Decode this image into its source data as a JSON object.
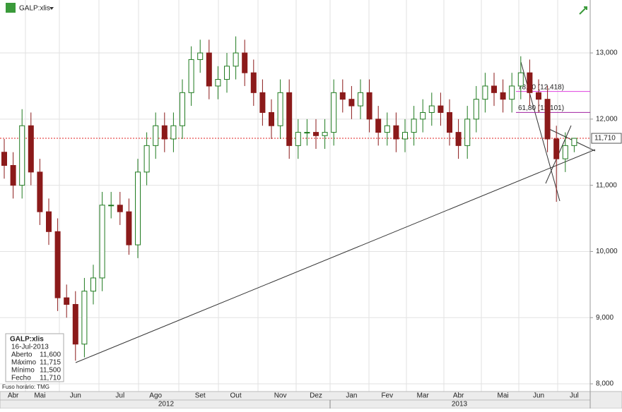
{
  "header": {
    "symbol": "GALP:xlis"
  },
  "timezone": "Fuso horário: TMG",
  "info_box": {
    "title": "GALP:xlis",
    "date": "16-Jul-2013",
    "rows": [
      [
        "Aberto",
        "11,600"
      ],
      [
        "Máximo",
        "11,715"
      ],
      [
        "Mínimo",
        "11,500"
      ],
      [
        "Fecho",
        "11,710"
      ]
    ]
  },
  "chart_data": {
    "type": "candlestick",
    "categories": [
      null,
      "Abr",
      null,
      null,
      "Mai",
      null,
      null,
      null,
      "Jun",
      null,
      null,
      null,
      null,
      "Jul",
      null,
      null,
      null,
      "Ago",
      null,
      null,
      null,
      null,
      "Set",
      null,
      null,
      null,
      "Out",
      null,
      null,
      null,
      null,
      "Nov",
      null,
      null,
      null,
      "Dez",
      null,
      null,
      null,
      "Jan",
      null,
      null,
      null,
      "Fev",
      null,
      null,
      null,
      "Mar",
      null,
      null,
      null,
      "Abr",
      null,
      null,
      null,
      null,
      "Mai",
      null,
      null,
      null,
      "Jun",
      null,
      null,
      null,
      "Jul"
    ],
    "year_labels": [
      "2012",
      "2013"
    ],
    "series": [
      {
        "name": "GALP:xlis",
        "up_color": "#1f7a1f",
        "down_color": "#8b1a1a",
        "open": [
          11.5,
          11.3,
          11.0,
          11.9,
          11.2,
          10.6,
          10.3,
          9.3,
          9.2,
          8.6,
          9.4,
          9.6,
          10.7,
          10.7,
          10.6,
          10.1,
          11.2,
          11.6,
          11.9,
          11.7,
          11.9,
          12.4,
          12.9,
          13.0,
          12.5,
          12.6,
          12.8,
          13.0,
          12.7,
          12.4,
          12.1,
          11.9,
          12.4,
          11.6,
          11.8,
          11.8,
          11.75,
          11.8,
          12.4,
          12.3,
          12.2,
          12.4,
          12.0,
          11.8,
          11.9,
          11.7,
          11.8,
          12.0,
          12.1,
          12.2,
          12.1,
          11.8,
          11.6,
          12.0,
          12.3,
          12.5,
          12.4,
          12.3,
          12.5,
          12.7,
          12.4,
          12.3,
          11.7,
          11.4,
          11.6
        ],
        "high": [
          11.7,
          11.5,
          12.15,
          12.1,
          11.4,
          10.8,
          10.5,
          9.5,
          9.4,
          9.6,
          9.8,
          10.9,
          10.9,
          10.9,
          10.8,
          11.4,
          11.8,
          12.1,
          12.1,
          12.1,
          12.6,
          13.1,
          13.2,
          13.2,
          12.8,
          13.0,
          13.25,
          13.2,
          12.9,
          12.6,
          12.3,
          12.6,
          12.6,
          12.0,
          12.0,
          12.0,
          12.0,
          12.6,
          12.6,
          12.5,
          12.6,
          12.6,
          12.2,
          12.1,
          12.1,
          12.0,
          12.2,
          12.3,
          12.4,
          12.4,
          12.3,
          12.0,
          12.2,
          12.5,
          12.7,
          12.7,
          12.6,
          12.7,
          12.95,
          12.9,
          12.6,
          12.5,
          11.9,
          11.8,
          11.715
        ],
        "low": [
          11.1,
          10.8,
          10.8,
          11.0,
          10.4,
          10.1,
          9.1,
          9.0,
          8.35,
          8.4,
          9.2,
          9.4,
          10.5,
          10.4,
          9.95,
          9.9,
          11.0,
          11.4,
          11.5,
          11.5,
          11.7,
          12.2,
          12.7,
          12.3,
          12.3,
          12.4,
          12.6,
          12.5,
          12.2,
          11.9,
          11.7,
          11.7,
          11.4,
          11.4,
          11.6,
          11.55,
          11.55,
          11.6,
          12.1,
          12.0,
          12.0,
          11.8,
          11.6,
          11.6,
          11.5,
          11.5,
          11.6,
          11.8,
          11.9,
          11.9,
          11.6,
          11.4,
          11.4,
          11.8,
          12.1,
          12.2,
          12.1,
          12.1,
          12.3,
          12.2,
          12.1,
          11.5,
          10.75,
          11.2,
          11.5
        ],
        "close": [
          11.3,
          11.0,
          11.9,
          11.2,
          10.6,
          10.3,
          9.3,
          9.2,
          8.6,
          9.4,
          9.6,
          10.7,
          10.7,
          10.6,
          10.1,
          11.2,
          11.6,
          11.9,
          11.7,
          11.9,
          12.4,
          12.9,
          13.0,
          12.5,
          12.6,
          12.8,
          13.0,
          12.7,
          12.4,
          12.1,
          11.9,
          12.4,
          11.6,
          11.8,
          11.8,
          11.75,
          11.8,
          12.4,
          12.3,
          12.2,
          12.4,
          12.0,
          11.8,
          11.9,
          11.7,
          11.8,
          12.0,
          12.1,
          12.2,
          12.1,
          11.8,
          11.6,
          12.0,
          12.3,
          12.5,
          12.4,
          12.3,
          12.5,
          12.7,
          12.4,
          12.3,
          11.7,
          11.4,
          11.6,
          11.71
        ]
      }
    ],
    "ylim": [
      7.88,
      13.8
    ],
    "yticks": [
      {
        "value": 8,
        "label": "8,000"
      },
      {
        "value": 9,
        "label": "9,000"
      },
      {
        "value": 10,
        "label": "10,000"
      },
      {
        "value": 11,
        "label": "11,000"
      },
      {
        "value": 12,
        "label": "12,000"
      },
      {
        "value": 13,
        "label": "13,000"
      }
    ],
    "grid": true,
    "last_price": {
      "value": 11.71,
      "label": "11,710",
      "color": "#e02020"
    },
    "levels": [
      {
        "value": 12.418,
        "label": "78,60 (12,418)",
        "color": "#e040e0"
      },
      {
        "value": 12.101,
        "label": "61,80 (12,101)",
        "color": "#a020a0"
      }
    ]
  }
}
